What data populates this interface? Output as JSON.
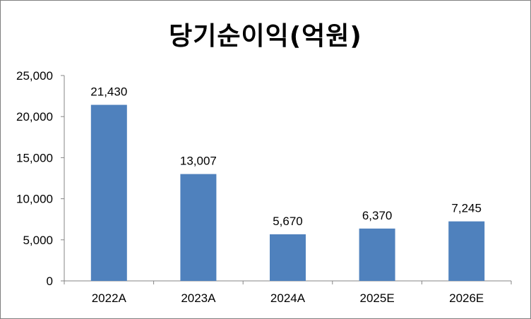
{
  "chart_data": {
    "type": "bar",
    "title": "당기순이익(억원)",
    "categories": [
      "2022A",
      "2023A",
      "2024A",
      "2025E",
      "2026E"
    ],
    "values": [
      21430,
      13007,
      5670,
      6370,
      7245
    ],
    "value_labels": [
      "21,430",
      "13,007",
      "5,670",
      "6,370",
      "7,245"
    ],
    "ylim": [
      0,
      25000
    ],
    "yticks": [
      0,
      5000,
      10000,
      15000,
      20000,
      25000
    ],
    "ytick_labels": [
      "0",
      "5,000",
      "10,000",
      "15,000",
      "20,000",
      "25,000"
    ],
    "xlabel": "",
    "ylabel": "",
    "grid": false,
    "legend": "none",
    "bar_color": "#4f81bd",
    "axis_color": "#868686"
  }
}
